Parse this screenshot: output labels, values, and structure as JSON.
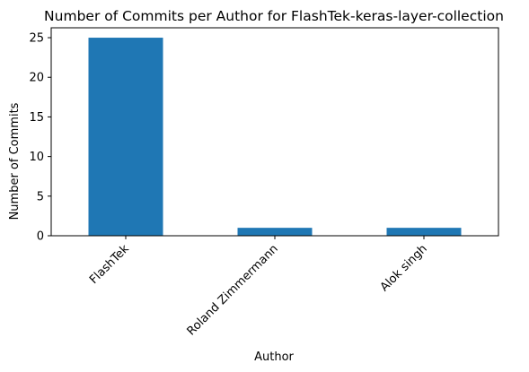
{
  "chart_data": {
    "type": "bar",
    "title": "Number of Commits per Author for FlashTek-keras-layer-collection",
    "xlabel": "Author",
    "ylabel": "Number of Commits",
    "categories": [
      "FlashTek",
      "Roland Zimmermann",
      "Alok singh"
    ],
    "values": [
      25,
      1,
      1
    ],
    "ylim": [
      0,
      26.25
    ],
    "yticks": [
      0,
      5,
      10,
      15,
      20,
      25
    ],
    "grid": false,
    "legend": "none",
    "bar_color": "#1f77b4"
  }
}
